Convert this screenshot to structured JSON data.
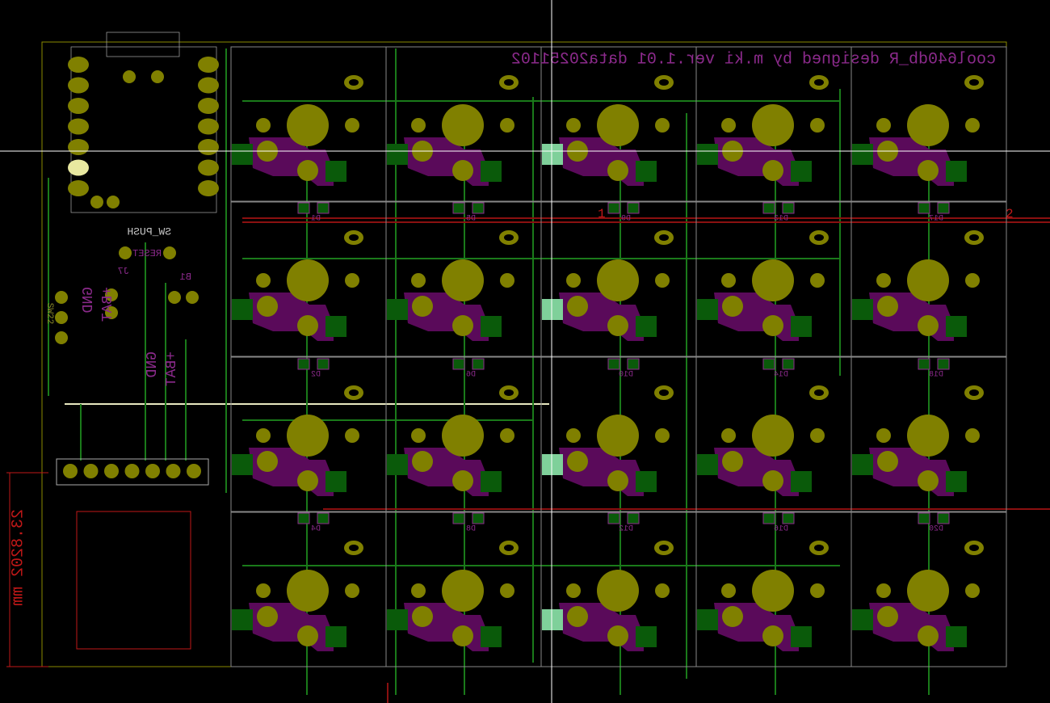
{
  "board": {
    "title": "cool640db_R designed by m.ki ver.1.01 data20251102",
    "dimension": "23.8202 mm",
    "net_labels": [
      "1",
      "2"
    ]
  },
  "controller": {
    "switch_type": "SW_PUSH",
    "switch_label": "RESET",
    "power_switch": "SW22",
    "connector": "J7",
    "battery": "B1",
    "connector_pins": [
      "+BAT",
      "GND"
    ],
    "battery_pins": [
      "+BAT",
      "GND"
    ]
  },
  "diodes": [
    [
      "D1",
      "D5",
      "D9",
      "D13",
      "D17"
    ],
    [
      "D2",
      "D6",
      "D10",
      "D14",
      "D18"
    ],
    [
      "D4",
      "D8",
      "D12",
      "D16",
      "D20"
    ]
  ]
}
